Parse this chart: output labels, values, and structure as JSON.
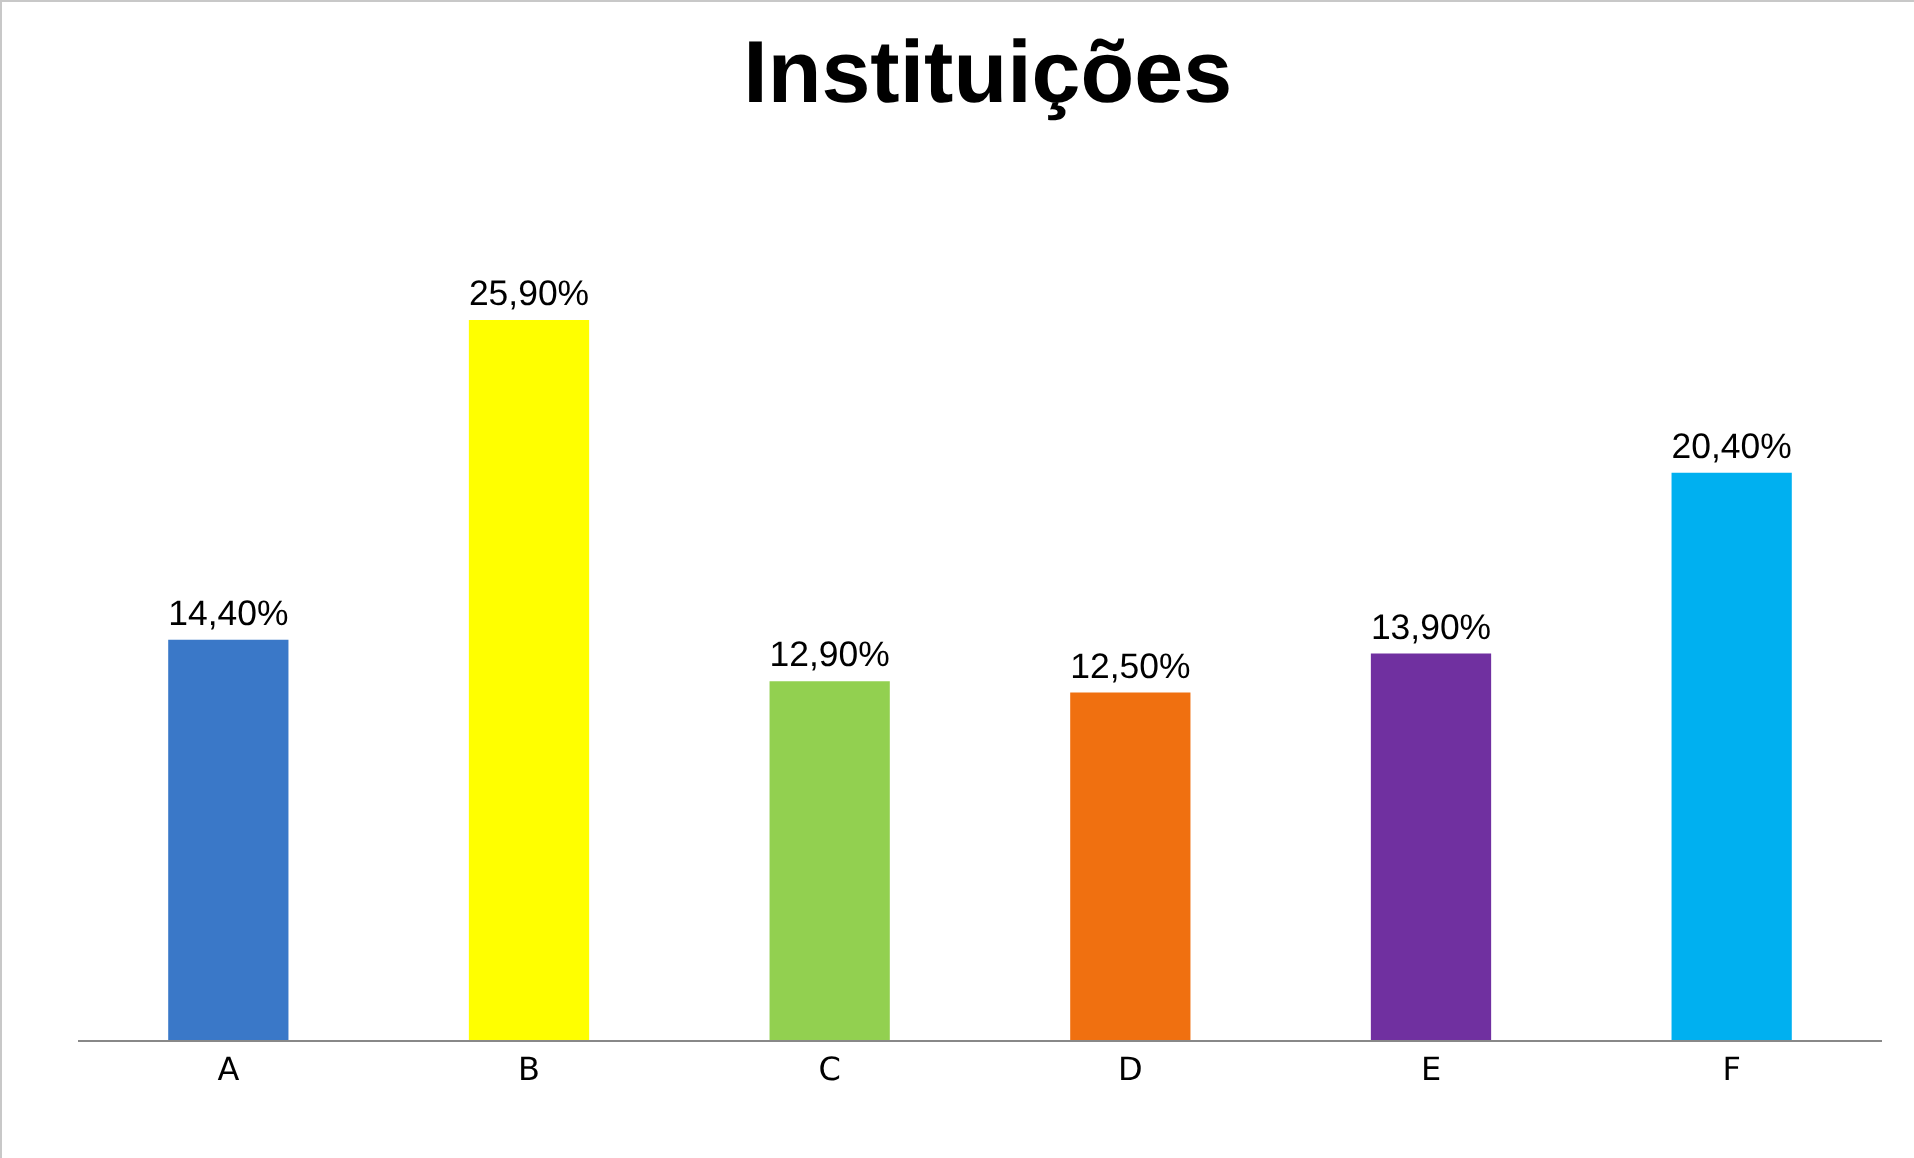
{
  "chart_data": {
    "type": "bar",
    "title": "Instituições",
    "categories": [
      "A",
      "B",
      "C",
      "D",
      "E",
      "F"
    ],
    "values": [
      14.4,
      25.9,
      12.9,
      12.5,
      13.9,
      20.4
    ],
    "value_labels": [
      "14,40%",
      "25,90%",
      "12,90%",
      "12,50%",
      "13,90%",
      "20,40%"
    ],
    "colors": [
      "#3a78c8",
      "#ffff00",
      "#92d050",
      "#f07010",
      "#7030a0",
      "#00b0f0"
    ]
  }
}
